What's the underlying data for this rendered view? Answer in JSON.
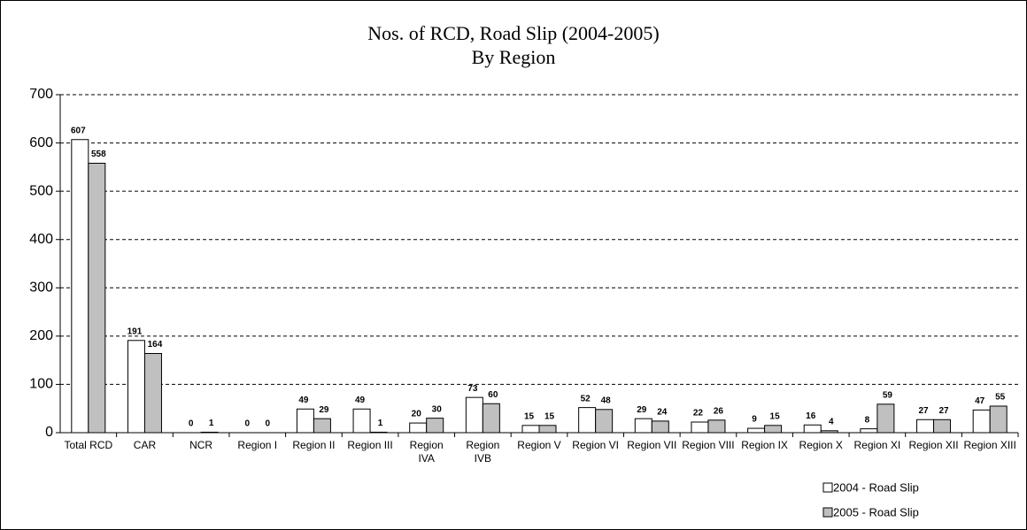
{
  "chart_data": {
    "type": "bar",
    "title": "Nos. of RCD, Road Slip (2004-2005)",
    "subtitle": "By Region",
    "categories": [
      "Total RCD",
      "CAR",
      "NCR",
      "Region I",
      "Region II",
      "Region III",
      "Region IVA",
      "Region IVB",
      "Region V",
      "Region VI",
      "Region VII",
      "Region VIII",
      "Region IX",
      "Region X",
      "Region XI",
      "Region XII",
      "Region XIII"
    ],
    "series": [
      {
        "name": "2004 - Road Slip",
        "color": "#ffffff",
        "values": [
          607,
          191,
          0,
          0,
          49,
          49,
          20,
          73,
          15,
          52,
          29,
          22,
          9,
          16,
          8,
          27,
          47
        ]
      },
      {
        "name": "2005 - Road Slip",
        "color": "#c0c0c0",
        "values": [
          558,
          164,
          1,
          0,
          29,
          1,
          30,
          60,
          15,
          48,
          24,
          26,
          15,
          4,
          59,
          27,
          55
        ]
      }
    ],
    "ylim": [
      0,
      700
    ],
    "yticks": [
      0,
      100,
      200,
      300,
      400,
      500,
      600,
      700
    ],
    "grid": true,
    "legend": "bottom-right"
  }
}
